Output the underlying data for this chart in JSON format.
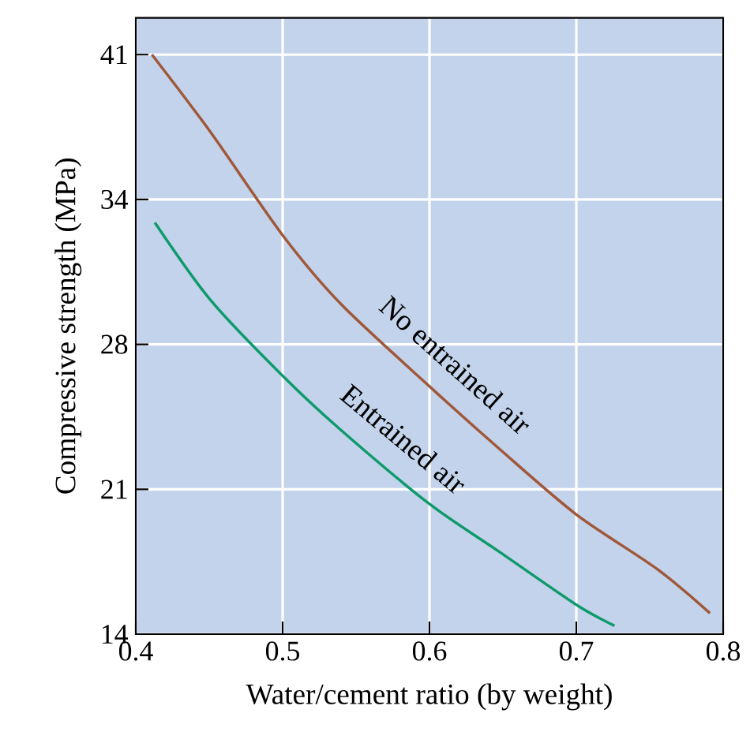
{
  "chart_data": {
    "type": "line",
    "xlabel": "Water/cement ratio (by weight)",
    "ylabel": "Compressive strength (MPa)",
    "xlim": [
      0.4,
      0.8
    ],
    "xticks": [
      0.4,
      0.5,
      0.6,
      0.7,
      0.8
    ],
    "ylim": [
      13.8,
      43.15
    ],
    "yticks": [
      {
        "value": 13.8,
        "label": "14"
      },
      {
        "value": 20.7,
        "label": "21"
      },
      {
        "value": 27.6,
        "label": "28"
      },
      {
        "value": 34.5,
        "label": "34"
      },
      {
        "value": 41.4,
        "label": "41"
      }
    ],
    "grid": true,
    "legend": false,
    "marker": "none",
    "line_style": "solid",
    "series": [
      {
        "name": "No entrained air",
        "color": "#a0583a",
        "x": [
          0.411,
          0.451,
          0.5,
          0.54,
          0.6,
          0.648,
          0.7,
          0.755,
          0.791
        ],
        "values": [
          41.4,
          37.7,
          32.8,
          29.5,
          25.6,
          22.6,
          19.5,
          16.9,
          14.8
        ]
      },
      {
        "name": "Entrained air",
        "color": "#0e9a6b",
        "x": [
          0.413,
          0.451,
          0.5,
          0.54,
          0.6,
          0.648,
          0.7,
          0.726
        ],
        "values": [
          33.4,
          29.7,
          26.1,
          23.5,
          20.0,
          17.7,
          15.2,
          14.2
        ]
      }
    ]
  }
}
